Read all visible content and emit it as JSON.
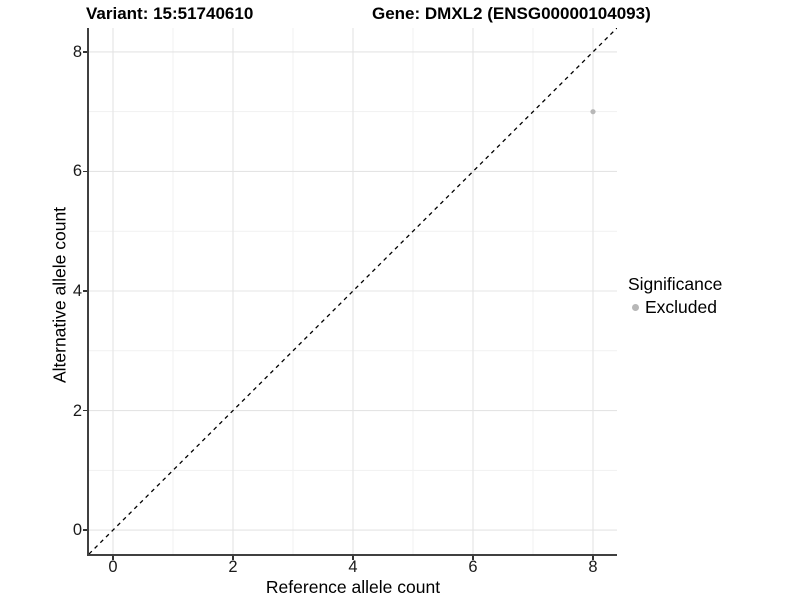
{
  "titles": {
    "variant": "Variant: 15:51740610",
    "gene": "Gene: DMXL2 (ENSG00000104093)"
  },
  "legend": {
    "title": "Significance",
    "position": "right",
    "items": [
      {
        "label": "Excluded",
        "color": "#b7b7b7"
      }
    ]
  },
  "colors": {
    "background": "#ffffff",
    "axis_line": "#404040",
    "tick": "#333333",
    "grid_major": "#e4e4e4",
    "grid_minor": "#f1f1f1",
    "reference_line": "#000000",
    "point": "#b7b7b7"
  },
  "chart_data": {
    "type": "scatter",
    "title": "",
    "xlabel": "Reference allele count",
    "ylabel": "Alternative allele count",
    "xlim": [
      -0.4,
      8.4
    ],
    "ylim": [
      -0.4,
      8.4
    ],
    "x_ticks": [
      0,
      2,
      4,
      6,
      8
    ],
    "y_ticks": [
      0,
      2,
      4,
      6,
      8
    ],
    "x_minor_ticks": [
      1,
      3,
      5,
      7
    ],
    "y_minor_ticks": [
      1,
      3,
      5,
      7
    ],
    "grid": true,
    "legend_position": "right",
    "reference_line": {
      "type": "identity",
      "style": "dashed",
      "slope": 1,
      "intercept": 0
    },
    "series": [
      {
        "name": "Excluded",
        "color": "#b7b7b7",
        "point_radius": 2.6,
        "points": [
          {
            "x": 8,
            "y": 7
          }
        ]
      }
    ]
  }
}
